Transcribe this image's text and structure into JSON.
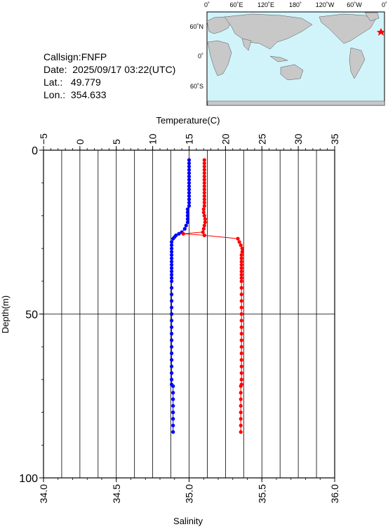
{
  "info": {
    "callsign": "Callsign:FNFP",
    "date_label": "Date:",
    "date_value": "2025/09/17 03:22(UTC)",
    "lat_label": "Lat.:",
    "lat_value": "49.779",
    "lon_label": "Lon.:",
    "lon_value": "354.633"
  },
  "map": {
    "top_labels": [
      "0˚",
      "60˚E",
      "120˚E",
      "180˚",
      "120˚W",
      "60˚W",
      "0˚"
    ],
    "left_labels": [
      "60˚N",
      "0˚",
      "60˚S"
    ],
    "ocean_color": "#d0f4fa",
    "land_color": "#c8c8c8",
    "marker_color": "#ff0000"
  },
  "chart_data": {
    "type": "scatter",
    "title": "",
    "xlabel_top": "Temperature(C)",
    "xlabel_bottom": "Salinity",
    "ylabel": "Depth(m)",
    "temperature_ticks": [
      "−5",
      "0",
      "5",
      "10",
      "15",
      "20",
      "25",
      "30",
      "35"
    ],
    "salinity_ticks": [
      "34.0",
      "34.5",
      "35.0",
      "35.5",
      "36.0"
    ],
    "depth_ticks": [
      "0",
      "50",
      "100"
    ],
    "temperature_range": [
      -5,
      35
    ],
    "salinity_range": [
      34.0,
      36.0
    ],
    "depth_range": [
      0,
      100
    ],
    "grid": true,
    "series": [
      {
        "name": "",
        "quantity": "salinity",
        "color": "#0000ff",
        "depth": [
          3,
          4,
          5,
          6,
          7,
          8,
          9,
          10,
          11,
          12,
          13,
          14,
          15,
          16,
          17,
          18,
          19,
          20,
          21,
          22,
          23,
          24,
          25,
          25.5,
          26,
          26.5,
          27,
          28,
          29,
          30,
          31,
          32,
          33,
          34,
          35,
          36,
          37,
          38,
          39,
          40,
          42,
          44,
          46,
          48,
          50,
          52,
          54,
          56,
          58,
          60,
          62,
          64,
          66,
          68,
          70,
          71.5,
          72,
          74,
          76,
          78,
          80,
          82,
          84,
          86
        ],
        "values": [
          35.0,
          35.0,
          35.0,
          35.0,
          35.0,
          35.0,
          35.0,
          35.0,
          35.0,
          35.0,
          35.0,
          35.0,
          35.0,
          35.0,
          35.0,
          34.99,
          34.99,
          34.99,
          34.99,
          34.99,
          34.98,
          34.97,
          34.95,
          34.93,
          34.91,
          34.9,
          34.89,
          34.88,
          34.88,
          34.88,
          34.88,
          34.88,
          34.88,
          34.88,
          34.88,
          34.88,
          34.88,
          34.88,
          34.88,
          34.88,
          34.88,
          34.88,
          34.88,
          34.88,
          34.88,
          34.88,
          34.88,
          34.88,
          34.88,
          34.88,
          34.88,
          34.88,
          34.88,
          34.88,
          34.88,
          34.88,
          34.89,
          34.89,
          34.89,
          34.89,
          34.89,
          34.89,
          34.89,
          34.89
        ]
      },
      {
        "name": "",
        "quantity": "temperature",
        "color": "#ff0000",
        "depth": [
          3,
          4,
          5,
          6,
          7,
          8,
          9,
          10,
          11,
          12,
          13,
          14,
          15,
          16,
          17,
          18,
          19,
          20,
          21,
          22,
          23,
          24,
          25,
          25.5,
          26,
          27,
          28,
          29,
          30,
          31,
          32,
          33,
          34,
          35,
          36,
          37,
          38,
          39,
          40,
          42,
          44,
          46,
          48,
          50,
          52,
          54,
          56,
          58,
          60,
          62,
          64,
          66,
          68,
          70,
          71.5,
          72,
          74,
          76,
          78,
          80,
          82,
          84,
          86
        ],
        "values": [
          17.1,
          17.1,
          17.1,
          17.1,
          17.1,
          17.1,
          17.1,
          17.1,
          17.1,
          17.1,
          17.1,
          17.1,
          17.1,
          17.1,
          17.1,
          17.0,
          17.0,
          17.1,
          17.2,
          17.2,
          17.1,
          17.0,
          16.9,
          14.2,
          17.1,
          21.7,
          21.9,
          22.1,
          22.3,
          22.3,
          22.2,
          22.2,
          22.2,
          22.2,
          22.2,
          22.2,
          22.2,
          22.2,
          22.2,
          22.2,
          22.2,
          22.2,
          22.2,
          22.2,
          22.2,
          22.2,
          22.2,
          22.2,
          22.2,
          22.2,
          22.2,
          22.2,
          22.2,
          22.2,
          22.2,
          22.1,
          22.1,
          22.1,
          22.1,
          22.1,
          22.1,
          22.1,
          22.1
        ]
      }
    ]
  }
}
